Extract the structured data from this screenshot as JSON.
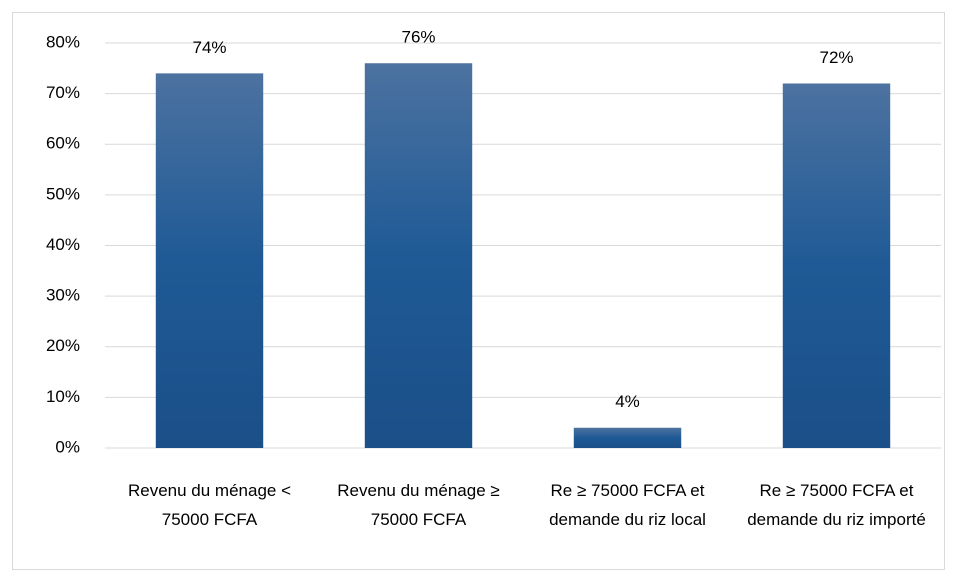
{
  "chart_data": {
    "type": "bar",
    "categories": [
      "Revenu du ménage < 75000 FCFA",
      "Revenu du ménage ≥ 75000 FCFA",
      "Re ≥ 75000 FCFA et demande du riz local",
      "Re ≥ 75000 FCFA et demande du riz importé"
    ],
    "values": [
      74,
      76,
      4,
      72
    ],
    "value_labels": [
      "74%",
      "76%",
      "4%",
      "72%"
    ],
    "color": "#1f5590",
    "ylim": [
      0,
      80
    ],
    "yticks": [
      {
        "value": 0,
        "label": "0%"
      },
      {
        "value": 10,
        "label": "10%"
      },
      {
        "value": 20,
        "label": "20%"
      },
      {
        "value": 30,
        "label": "30%"
      },
      {
        "value": 40,
        "label": "40%"
      },
      {
        "value": 50,
        "label": "50%"
      },
      {
        "value": 60,
        "label": "60%"
      },
      {
        "value": 70,
        "label": "70%"
      },
      {
        "value": 80,
        "label": "80%"
      }
    ],
    "grid": true
  }
}
